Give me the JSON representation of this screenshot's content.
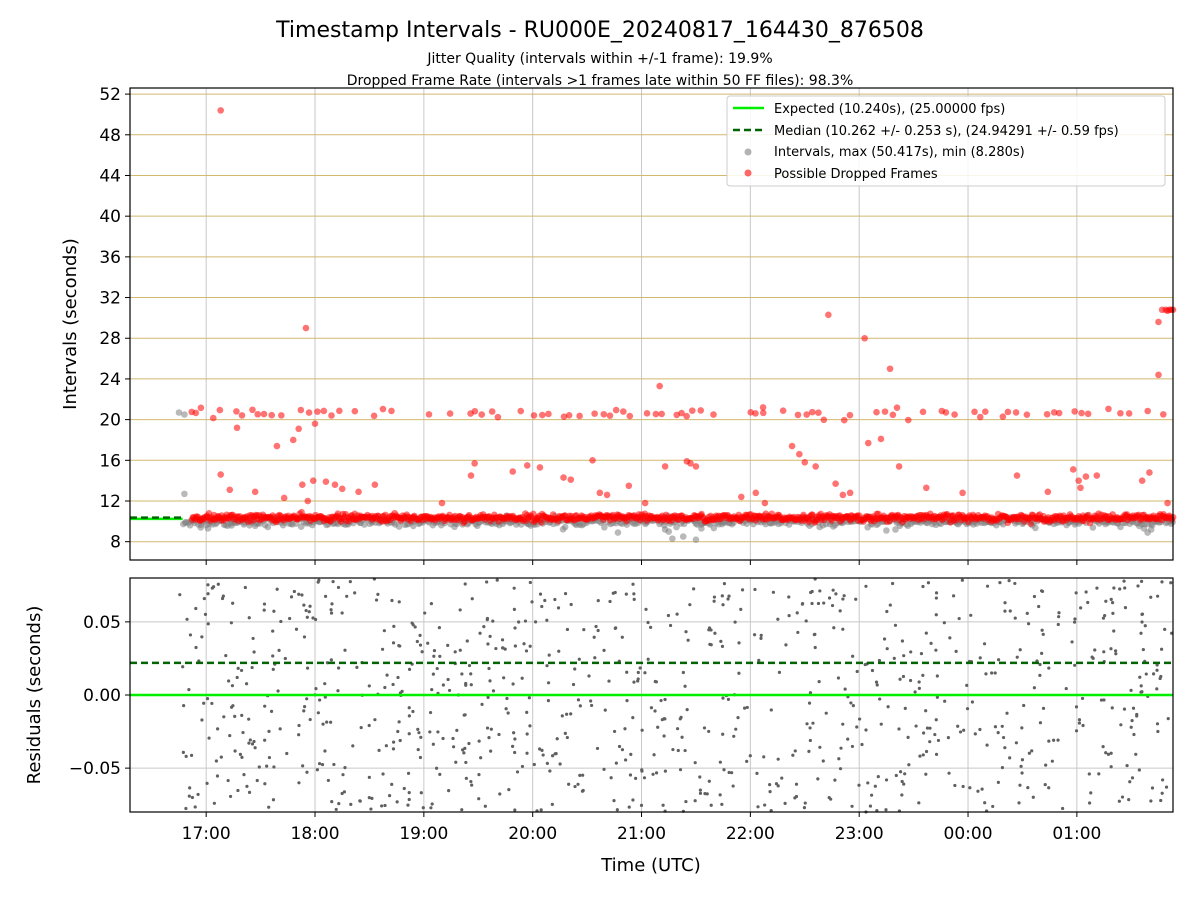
{
  "figure": {
    "title": "Timestamp Intervals - RU000E_20240817_164430_876508",
    "subtitle_1": "Jitter Quality (intervals within +/-1 frame): 19.9%",
    "subtitle_2": "Dropped Frame Rate (intervals >1 frames late within 50 FF files): 98.3%",
    "xlabel": "Time (UTC)"
  },
  "chart_data": [
    {
      "type": "scatter",
      "panel": "intervals",
      "ylabel": "Intervals (seconds)",
      "xlim": [
        "16:18",
        "01:53"
      ],
      "ylim": [
        6.2,
        52.6
      ],
      "x_ticks": [
        "17:00",
        "18:00",
        "19:00",
        "20:00",
        "21:00",
        "22:00",
        "23:00",
        "00:00",
        "01:00"
      ],
      "y_ticks": [
        8,
        12,
        16,
        20,
        24,
        28,
        32,
        36,
        40,
        44,
        48,
        52
      ],
      "grid": true,
      "legend_placement": "top-right",
      "colors": {
        "expected": "#00ee00",
        "median": "#006400",
        "intervals": "#808080",
        "dropped": "#ff0000",
        "hgrid": "#d2b96e",
        "vgrid": "#c8c8c8"
      },
      "series": [
        {
          "name": "Expected (10.240s), (25.00000 fps)",
          "kind": "hline",
          "value": 10.24,
          "x_range": [
            "16:18",
            "16:47"
          ]
        },
        {
          "name": "Median (10.262 +/- 0.253 s), (24.94291 +/- 0.59 fps)",
          "kind": "hline-dashed",
          "value": 10.262,
          "x_range": [
            "16:18",
            "16:47"
          ]
        },
        {
          "name": "Intervals, max (50.417s), min (8.280s)",
          "kind": "scatter",
          "band": {
            "x_range": [
              "16:47",
              "01:53"
            ],
            "center": 10.1,
            "spread": 0.35
          },
          "points": [
            {
              "x": "16:45",
              "y": 20.7
            },
            {
              "x": "16:48",
              "y": 20.5
            },
            {
              "x": "16:48",
              "y": 12.7
            },
            {
              "x": "16:57",
              "y": 9.4
            },
            {
              "x": "17:01",
              "y": 9.3
            },
            {
              "x": "17:14",
              "y": 9.6
            },
            {
              "x": "20:47",
              "y": 8.9
            },
            {
              "x": "21:13",
              "y": 9.2
            },
            {
              "x": "21:15",
              "y": 9.0
            },
            {
              "x": "21:17",
              "y": 8.3
            },
            {
              "x": "21:23",
              "y": 8.5
            },
            {
              "x": "21:30",
              "y": 8.2
            },
            {
              "x": "21:33",
              "y": 9.3
            },
            {
              "x": "23:15",
              "y": 9.1
            },
            {
              "x": "23:20",
              "y": 9.2
            },
            {
              "x": "01:37",
              "y": 9.3
            },
            {
              "x": "01:39",
              "y": 8.9
            },
            {
              "x": "01:41",
              "y": 9.2
            }
          ]
        },
        {
          "name": "Possible Dropped Frames",
          "kind": "scatter",
          "band_low": {
            "x_range": [
              "16:52",
              "01:53"
            ],
            "center": 10.35,
            "spread": 0.35
          },
          "band_high": {
            "x_range": [
              "16:52",
              "01:49"
            ],
            "center": 20.6,
            "spread": 0.25
          },
          "points": [
            {
              "x": "17:08",
              "y": 50.4
            },
            {
              "x": "17:55",
              "y": 29.0
            },
            {
              "x": "22:43",
              "y": 30.3
            },
            {
              "x": "23:03",
              "y": 28.0
            },
            {
              "x": "23:17",
              "y": 25.0
            },
            {
              "x": "21:10",
              "y": 23.3
            },
            {
              "x": "22:07",
              "y": 21.2
            },
            {
              "x": "18:00",
              "y": 19.6
            },
            {
              "x": "17:17",
              "y": 19.2
            },
            {
              "x": "17:51",
              "y": 19.1
            },
            {
              "x": "17:48",
              "y": 18.0
            },
            {
              "x": "17:39",
              "y": 17.4
            },
            {
              "x": "17:59",
              "y": 14.0
            },
            {
              "x": "18:06",
              "y": 13.9
            },
            {
              "x": "18:11",
              "y": 13.6
            },
            {
              "x": "18:15",
              "y": 13.2
            },
            {
              "x": "18:33",
              "y": 13.6
            },
            {
              "x": "17:08",
              "y": 14.6
            },
            {
              "x": "17:13",
              "y": 13.1
            },
            {
              "x": "17:27",
              "y": 12.9
            },
            {
              "x": "17:43",
              "y": 12.3
            },
            {
              "x": "17:53",
              "y": 13.6
            },
            {
              "x": "17:56",
              "y": 12.0
            },
            {
              "x": "18:24",
              "y": 12.9
            },
            {
              "x": "19:10",
              "y": 11.8
            },
            {
              "x": "19:28",
              "y": 15.7
            },
            {
              "x": "19:26",
              "y": 14.5
            },
            {
              "x": "19:49",
              "y": 14.9
            },
            {
              "x": "19:57",
              "y": 15.5
            },
            {
              "x": "20:04",
              "y": 15.3
            },
            {
              "x": "20:17",
              "y": 14.3
            },
            {
              "x": "20:21",
              "y": 14.1
            },
            {
              "x": "20:33",
              "y": 16.0
            },
            {
              "x": "20:37",
              "y": 12.8
            },
            {
              "x": "20:41",
              "y": 12.6
            },
            {
              "x": "20:53",
              "y": 13.5
            },
            {
              "x": "21:02",
              "y": 11.8
            },
            {
              "x": "21:13",
              "y": 15.4
            },
            {
              "x": "21:25",
              "y": 15.9
            },
            {
              "x": "21:27",
              "y": 15.7
            },
            {
              "x": "21:30",
              "y": 15.4
            },
            {
              "x": "21:55",
              "y": 12.4
            },
            {
              "x": "22:03",
              "y": 12.8
            },
            {
              "x": "22:08",
              "y": 11.8
            },
            {
              "x": "22:23",
              "y": 17.4
            },
            {
              "x": "22:27",
              "y": 16.6
            },
            {
              "x": "22:30",
              "y": 15.8
            },
            {
              "x": "22:36",
              "y": 15.4
            },
            {
              "x": "22:47",
              "y": 13.7
            },
            {
              "x": "22:51",
              "y": 12.6
            },
            {
              "x": "22:55",
              "y": 12.8
            },
            {
              "x": "23:05",
              "y": 17.7
            },
            {
              "x": "23:12",
              "y": 18.1
            },
            {
              "x": "23:22",
              "y": 15.4
            },
            {
              "x": "23:37",
              "y": 13.3
            },
            {
              "x": "23:57",
              "y": 12.8
            },
            {
              "x": "00:27",
              "y": 14.5
            },
            {
              "x": "00:44",
              "y": 12.9
            },
            {
              "x": "00:58",
              "y": 15.1
            },
            {
              "x": "01:01",
              "y": 14.0
            },
            {
              "x": "01:05",
              "y": 14.4
            },
            {
              "x": "01:02",
              "y": 13.3
            },
            {
              "x": "01:11",
              "y": 14.5
            },
            {
              "x": "01:36",
              "y": 14.0
            },
            {
              "x": "01:40",
              "y": 14.8
            },
            {
              "x": "01:45",
              "y": 24.4
            },
            {
              "x": "01:50",
              "y": 11.8
            },
            {
              "x": "01:45",
              "y": 29.6
            },
            {
              "x": "01:47",
              "y": 30.8
            },
            {
              "x": "01:49",
              "y": 30.8
            },
            {
              "x": "01:50",
              "y": 30.7
            },
            {
              "x": "01:51",
              "y": 30.8
            },
            {
              "x": "01:52",
              "y": 30.8
            },
            {
              "x": "01:53",
              "y": 30.8
            }
          ]
        }
      ]
    },
    {
      "type": "scatter",
      "panel": "residuals",
      "ylabel": "Residuals (seconds)",
      "xlim": [
        "16:18",
        "01:53"
      ],
      "ylim": [
        -0.08,
        0.08
      ],
      "y_ticks": [
        0.05,
        0.0,
        -0.05
      ],
      "y_tick_labels": [
        "0.05",
        "0.00",
        "−0.05"
      ],
      "grid": true,
      "series": [
        {
          "name": "",
          "kind": "hline",
          "value": 0.0,
          "color": "#00ee00"
        },
        {
          "name": "",
          "kind": "hline-dashed",
          "value": 0.022,
          "color": "#006400"
        },
        {
          "name": "",
          "kind": "scatter",
          "color": "#606060",
          "x_range": [
            "16:45",
            "01:53"
          ],
          "ylim": [
            -0.08,
            0.08
          ],
          "count": 900
        }
      ]
    }
  ]
}
